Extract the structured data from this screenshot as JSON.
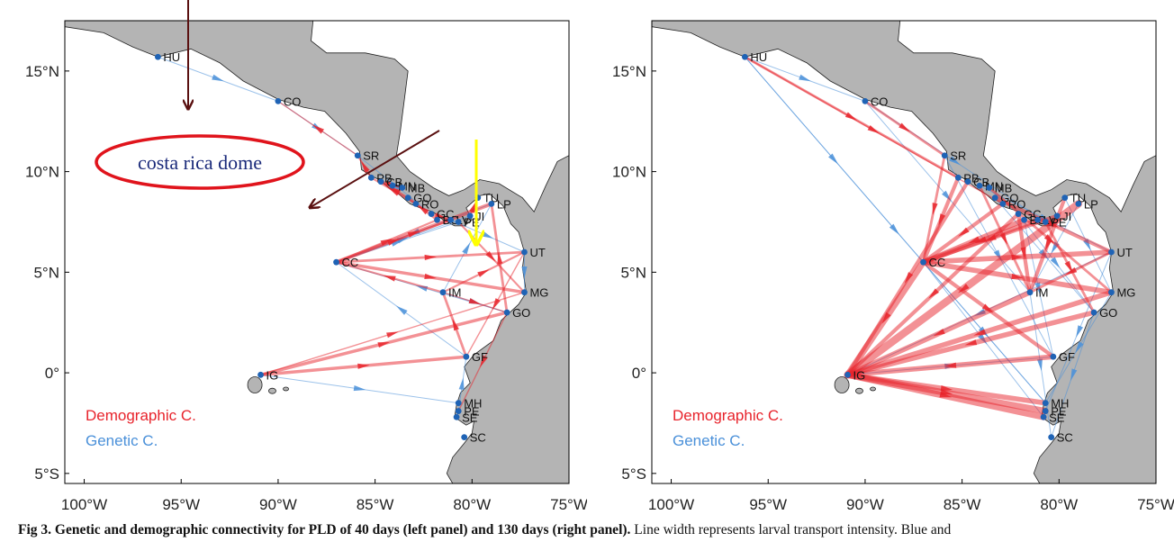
{
  "map": {
    "lon_ticks": [
      "100°W",
      "95°W",
      "90°W",
      "85°W",
      "80°W",
      "75°W"
    ],
    "lat_ticks": [
      "15°N",
      "10°N",
      "5°N",
      "0°",
      "5°S"
    ],
    "colors": {
      "sea": "#ffffff",
      "land": "#b4b4b4",
      "demographic": "#e8242c",
      "genetic": "#4a90d9",
      "site": "#1f63b5",
      "annotation_arrow": "#5a1010",
      "annotation_yellow": "#ffff00",
      "dome_ellipse": "#e0141c",
      "dome_text": "#1a2a7a"
    }
  },
  "sites": [
    {
      "code": "HU",
      "lon": -96.2,
      "lat": 15.7
    },
    {
      "code": "CO",
      "lon": -90.0,
      "lat": 13.5
    },
    {
      "code": "SR",
      "lon": -85.9,
      "lat": 10.8
    },
    {
      "code": "PB",
      "lon": -85.2,
      "lat": 9.7
    },
    {
      "code": "CB",
      "lon": -84.7,
      "lat": 9.5
    },
    {
      "code": "MN",
      "lon": -84.1,
      "lat": 9.3
    },
    {
      "code": "MB",
      "lon": -83.6,
      "lat": 9.2
    },
    {
      "code": "GO",
      "lon": -83.3,
      "lat": 8.7
    },
    {
      "code": "RO",
      "lon": -82.9,
      "lat": 8.4
    },
    {
      "code": "GC",
      "lon": -82.1,
      "lat": 7.9
    },
    {
      "code": "BC",
      "lon": -81.8,
      "lat": 7.6
    },
    {
      "code": "LV",
      "lon": -81.1,
      "lat": 7.6
    },
    {
      "code": "PE",
      "lon": -80.7,
      "lat": 7.5
    },
    {
      "code": "JI",
      "lon": -80.1,
      "lat": 7.8
    },
    {
      "code": "TU",
      "lon": -79.7,
      "lat": 8.7
    },
    {
      "code": "LP",
      "lon": -79.0,
      "lat": 8.4
    },
    {
      "code": "UT",
      "lon": -77.3,
      "lat": 6.0
    },
    {
      "code": "CC",
      "lon": -87.0,
      "lat": 5.5
    },
    {
      "code": "IM",
      "lon": -81.5,
      "lat": 4.0
    },
    {
      "code": "MG",
      "lon": -77.3,
      "lat": 4.0
    },
    {
      "code": "GO",
      "lon": -78.2,
      "lat": 3.0
    },
    {
      "code": "GF",
      "lon": -80.3,
      "lat": 0.8
    },
    {
      "code": "IG",
      "lon": -90.9,
      "lat": -0.1
    },
    {
      "code": "MH",
      "lon": -80.7,
      "lat": -1.5
    },
    {
      "code": "PE",
      "lon": -80.7,
      "lat": -1.9
    },
    {
      "code": "SE",
      "lon": -80.8,
      "lat": -2.2
    },
    {
      "code": "SC",
      "lon": -80.4,
      "lat": -3.2
    }
  ],
  "legend": {
    "demographic": "Demographic C.",
    "genetic": "Genetic C."
  },
  "annotations": {
    "dome_label": "costa rica dome"
  },
  "panels": {
    "left": {
      "pld_days": 40,
      "links_demographic": [
        {
          "from": 22,
          "to": 21,
          "w": 2.5
        },
        {
          "from": 22,
          "to": 20,
          "w": 2.5
        },
        {
          "from": 21,
          "to": 18,
          "w": 2
        },
        {
          "from": 18,
          "to": 17,
          "w": 1.5
        },
        {
          "from": 18,
          "to": 16,
          "w": 1.5
        },
        {
          "from": 17,
          "to": 16,
          "w": 2
        },
        {
          "from": 17,
          "to": 19,
          "w": 2.5
        },
        {
          "from": 17,
          "to": 11,
          "w": 1.5
        },
        {
          "from": 17,
          "to": 10,
          "w": 1.5
        },
        {
          "from": 17,
          "to": 15,
          "w": 3
        },
        {
          "from": 13,
          "to": 14,
          "w": 1.5
        },
        {
          "from": 10,
          "to": 7,
          "w": 2
        },
        {
          "from": 8,
          "to": 3,
          "w": 1.5
        },
        {
          "from": 3,
          "to": 2,
          "w": 1.5
        },
        {
          "from": 9,
          "to": 11,
          "w": 2
        },
        {
          "from": 7,
          "to": 4,
          "w": 1.5
        },
        {
          "from": 12,
          "to": 19,
          "w": 1.5
        },
        {
          "from": 20,
          "to": 15,
          "w": 2
        },
        {
          "from": 22,
          "to": 19,
          "w": 1
        },
        {
          "from": 20,
          "to": 24,
          "w": 1
        },
        {
          "from": 16,
          "to": 21,
          "w": 1
        },
        {
          "from": 2,
          "to": 1,
          "w": 1
        },
        {
          "from": 4,
          "to": 6,
          "w": 2
        },
        {
          "from": 18,
          "to": 20,
          "w": 1
        }
      ],
      "links_genetic": [
        {
          "from": 0,
          "to": 1,
          "w": 1
        },
        {
          "from": 1,
          "to": 2,
          "w": 1
        },
        {
          "from": 15,
          "to": 17,
          "w": 1
        },
        {
          "from": 16,
          "to": 19,
          "w": 1
        },
        {
          "from": 18,
          "to": 20,
          "w": 1
        },
        {
          "from": 18,
          "to": 15,
          "w": 1
        },
        {
          "from": 22,
          "to": 23,
          "w": 1
        },
        {
          "from": 21,
          "to": 17,
          "w": 1
        },
        {
          "from": 24,
          "to": 21,
          "w": 1
        },
        {
          "from": 17,
          "to": 12,
          "w": 1
        },
        {
          "from": 11,
          "to": 16,
          "w": 1
        },
        {
          "from": 9,
          "to": 2,
          "w": 1
        },
        {
          "from": 20,
          "to": 17,
          "w": 1
        },
        {
          "from": 17,
          "to": 13,
          "w": 1
        }
      ]
    },
    "right": {
      "pld_days": 130,
      "links_demographic": [
        {
          "from": 15,
          "to": 22,
          "w": 6
        },
        {
          "from": 17,
          "to": 22,
          "w": 5
        },
        {
          "from": 17,
          "to": 16,
          "w": 4
        },
        {
          "from": 17,
          "to": 19,
          "w": 4
        },
        {
          "from": 17,
          "to": 21,
          "w": 3
        },
        {
          "from": 21,
          "to": 22,
          "w": 4
        },
        {
          "from": 18,
          "to": 22,
          "w": 4
        },
        {
          "from": 19,
          "to": 22,
          "w": 4
        },
        {
          "from": 20,
          "to": 22,
          "w": 4
        },
        {
          "from": 22,
          "to": 24,
          "w": 5
        },
        {
          "from": 22,
          "to": 25,
          "w": 5
        },
        {
          "from": 22,
          "to": 23,
          "w": 4
        },
        {
          "from": 10,
          "to": 17,
          "w": 4
        },
        {
          "from": 11,
          "to": 17,
          "w": 4
        },
        {
          "from": 13,
          "to": 17,
          "w": 3
        },
        {
          "from": 9,
          "to": 18,
          "w": 3
        },
        {
          "from": 8,
          "to": 17,
          "w": 3
        },
        {
          "from": 7,
          "to": 16,
          "w": 3
        },
        {
          "from": 3,
          "to": 17,
          "w": 3
        },
        {
          "from": 2,
          "to": 17,
          "w": 2
        },
        {
          "from": 1,
          "to": 2,
          "w": 2
        },
        {
          "from": 0,
          "to": 3,
          "w": 2
        },
        {
          "from": 0,
          "to": 8,
          "w": 1
        },
        {
          "from": 5,
          "to": 18,
          "w": 2
        },
        {
          "from": 6,
          "to": 19,
          "w": 2
        },
        {
          "from": 12,
          "to": 20,
          "w": 2
        },
        {
          "from": 14,
          "to": 18,
          "w": 3
        },
        {
          "from": 16,
          "to": 18,
          "w": 2
        },
        {
          "from": 4,
          "to": 22,
          "w": 3
        },
        {
          "from": 9,
          "to": 22,
          "w": 3
        }
      ],
      "links_genetic": [
        {
          "from": 0,
          "to": 1,
          "w": 1
        },
        {
          "from": 0,
          "to": 23,
          "w": 1
        },
        {
          "from": 0,
          "to": 17,
          "w": 1
        },
        {
          "from": 1,
          "to": 12,
          "w": 1
        },
        {
          "from": 1,
          "to": 18,
          "w": 1
        },
        {
          "from": 2,
          "to": 21,
          "w": 1
        },
        {
          "from": 16,
          "to": 24,
          "w": 1
        },
        {
          "from": 16,
          "to": 22,
          "w": 1
        },
        {
          "from": 17,
          "to": 25,
          "w": 1
        },
        {
          "from": 18,
          "to": 26,
          "w": 1
        },
        {
          "from": 19,
          "to": 23,
          "w": 1
        },
        {
          "from": 20,
          "to": 26,
          "w": 1
        },
        {
          "from": 22,
          "to": 21,
          "w": 1
        },
        {
          "from": 15,
          "to": 18,
          "w": 1
        },
        {
          "from": 14,
          "to": 19,
          "w": 1
        },
        {
          "from": 10,
          "to": 21,
          "w": 1
        },
        {
          "from": 9,
          "to": 20,
          "w": 1
        },
        {
          "from": 5,
          "to": 16,
          "w": 1
        },
        {
          "from": 7,
          "to": 20,
          "w": 1
        },
        {
          "from": 17,
          "to": 23,
          "w": 1
        }
      ]
    }
  },
  "caption": {
    "label": "Fig 3.",
    "title": "Genetic and demographic connectivity for PLD of 40 days (left panel) and 130 days (right panel).",
    "text": " Line width represents larval transport intensity. Blue and"
  }
}
